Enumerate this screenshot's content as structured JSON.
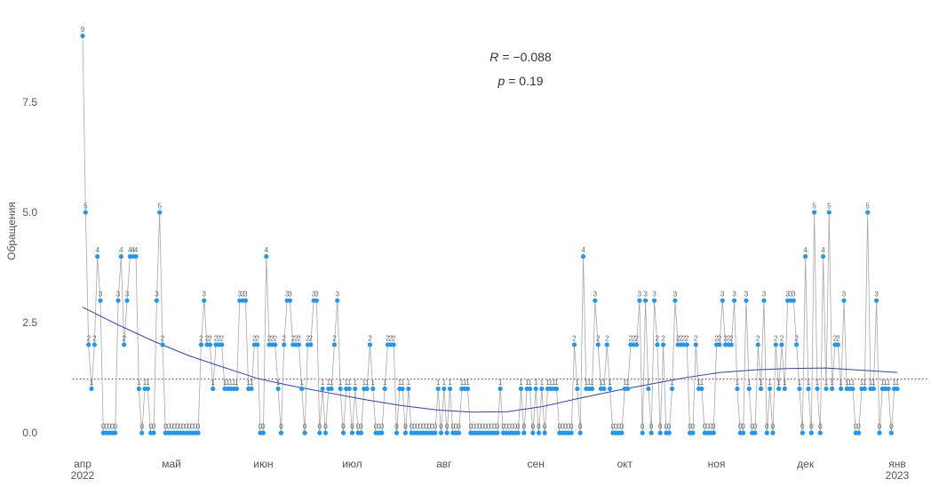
{
  "chart_data": {
    "type": "line",
    "y_label": "Обращения",
    "categories": [
      "апр 2022",
      null,
      null,
      null,
      null,
      null,
      null,
      null,
      null,
      null,
      null,
      null,
      null,
      null,
      null,
      null,
      null,
      null,
      null,
      null,
      null,
      null,
      null,
      null,
      null,
      null,
      null,
      null,
      null,
      null,
      "май",
      null,
      null,
      null,
      null,
      null,
      null,
      null,
      null,
      null,
      null,
      null,
      null,
      null,
      null,
      null,
      null,
      null,
      null,
      null,
      null,
      null,
      null,
      null,
      null,
      null,
      null,
      null,
      null,
      null,
      null,
      "июн",
      null,
      null,
      null,
      null,
      null,
      null,
      null,
      null,
      null,
      null,
      null,
      null,
      null,
      null,
      null,
      null,
      null,
      null,
      null,
      null,
      null,
      null,
      null,
      null,
      null,
      null,
      null,
      null,
      null,
      "июл",
      null,
      null,
      null,
      null,
      null,
      null,
      null,
      null,
      null,
      null,
      null,
      null,
      null,
      null,
      null,
      null,
      null,
      null,
      null,
      null,
      null,
      null,
      null,
      null,
      null,
      null,
      null,
      null,
      null,
      null,
      "авг",
      null,
      null,
      null,
      null,
      null,
      null,
      null,
      null,
      null,
      null,
      null,
      null,
      null,
      null,
      null,
      null,
      null,
      null,
      null,
      null,
      null,
      null,
      null,
      null,
      null,
      null,
      null,
      null,
      null,
      null,
      "сен",
      null,
      null,
      null,
      null,
      null,
      null,
      null,
      null,
      null,
      null,
      null,
      null,
      null,
      null,
      null,
      null,
      null,
      null,
      null,
      null,
      null,
      null,
      null,
      null,
      null,
      null,
      null,
      null,
      null,
      "окт",
      null,
      null,
      null,
      null,
      null,
      null,
      null,
      null,
      null,
      null,
      null,
      null,
      null,
      null,
      null,
      null,
      null,
      null,
      null,
      null,
      null,
      null,
      null,
      null,
      null,
      null,
      null,
      null,
      null,
      null,
      "ноя",
      null,
      null,
      null,
      null,
      null,
      null,
      null,
      null,
      null,
      null,
      null,
      null,
      null,
      null,
      null,
      null,
      null,
      null,
      null,
      null,
      null,
      null,
      null,
      null,
      null,
      null,
      null,
      null,
      null,
      "дек",
      null,
      null,
      null,
      null,
      null,
      null,
      null,
      null,
      null,
      null,
      null,
      null,
      null,
      null,
      null,
      null,
      null,
      null,
      null,
      null,
      null,
      null,
      null,
      null,
      null,
      null,
      null,
      null,
      null,
      null,
      "янв 2023"
    ],
    "values": [
      9,
      5,
      2,
      1,
      2,
      4,
      3,
      0,
      0,
      0,
      0,
      0,
      3,
      4,
      2,
      3,
      4,
      4,
      4,
      1,
      0,
      1,
      1,
      0,
      0,
      3,
      5,
      2,
      0,
      0,
      0,
      0,
      0,
      0,
      0,
      0,
      0,
      0,
      0,
      0,
      2,
      3,
      2,
      2,
      1,
      2,
      2,
      2,
      1,
      1,
      1,
      1,
      1,
      3,
      3,
      3,
      1,
      1,
      2,
      2,
      0,
      0,
      4,
      2,
      2,
      2,
      1,
      0,
      2,
      3,
      3,
      2,
      2,
      2,
      1,
      0,
      2,
      2,
      3,
      3,
      0,
      1,
      0,
      1,
      1,
      2,
      3,
      1,
      0,
      1,
      1,
      0,
      1,
      0,
      0,
      1,
      1,
      2,
      1,
      0,
      0,
      0,
      1,
      2,
      2,
      2,
      0,
      1,
      1,
      0,
      1,
      0,
      0,
      0,
      0,
      0,
      0,
      0,
      0,
      0,
      1,
      0,
      1,
      0,
      1,
      0,
      0,
      0,
      1,
      1,
      1,
      0,
      0,
      0,
      0,
      0,
      0,
      0,
      0,
      0,
      0,
      1,
      0,
      0,
      0,
      0,
      0,
      0,
      1,
      0,
      1,
      1,
      0,
      1,
      0,
      1,
      0,
      1,
      1,
      1,
      1,
      0,
      0,
      0,
      0,
      0,
      2,
      1,
      0,
      4,
      1,
      1,
      1,
      3,
      2,
      1,
      1,
      2,
      1,
      0,
      0,
      0,
      0,
      1,
      1,
      2,
      2,
      2,
      3,
      0,
      3,
      1,
      0,
      3,
      2,
      0,
      2,
      0,
      0,
      1,
      3,
      2,
      2,
      2,
      2,
      0,
      0,
      2,
      1,
      1,
      0,
      0,
      0,
      0,
      2,
      2,
      3,
      2,
      2,
      2,
      3,
      1,
      0,
      0,
      3,
      1,
      0,
      0,
      2,
      1,
      3,
      0,
      1,
      0,
      2,
      1,
      2,
      1,
      3,
      3,
      3,
      2,
      1,
      0,
      4,
      1,
      0,
      5,
      1,
      0,
      4,
      1,
      5,
      1,
      2,
      2,
      1,
      3,
      1,
      1,
      1,
      0,
      0,
      1,
      1,
      5,
      1,
      1,
      3,
      0,
      1,
      1,
      1,
      0,
      1,
      1
    ],
    "point_color": "#2196f3",
    "line_color": "#a8a8a8",
    "trend": {
      "values": [
        2.85,
        2.45,
        2.08,
        1.75,
        1.48,
        1.22,
        1.05,
        0.9,
        0.75,
        0.62,
        0.52,
        0.47,
        0.48,
        0.6,
        0.78,
        0.95,
        1.1,
        1.25,
        1.37,
        1.43,
        1.46,
        1.47,
        1.42,
        1.37
      ],
      "color": "#2a45b8"
    },
    "reference_line": {
      "value": 1.22,
      "color": "#cc3333"
    },
    "annotations": [
      {
        "symbol": "R",
        "text": "= −0.088"
      },
      {
        "symbol": "p",
        "text": "= 0.19"
      }
    ],
    "ylim": [
      -0.3,
      9.37
    ],
    "yticks": [
      {
        "value": 0,
        "label": "0.0"
      },
      2.5,
      {
        "value": 5,
        "label": "5.0"
      },
      7.5
    ],
    "grid": false
  }
}
